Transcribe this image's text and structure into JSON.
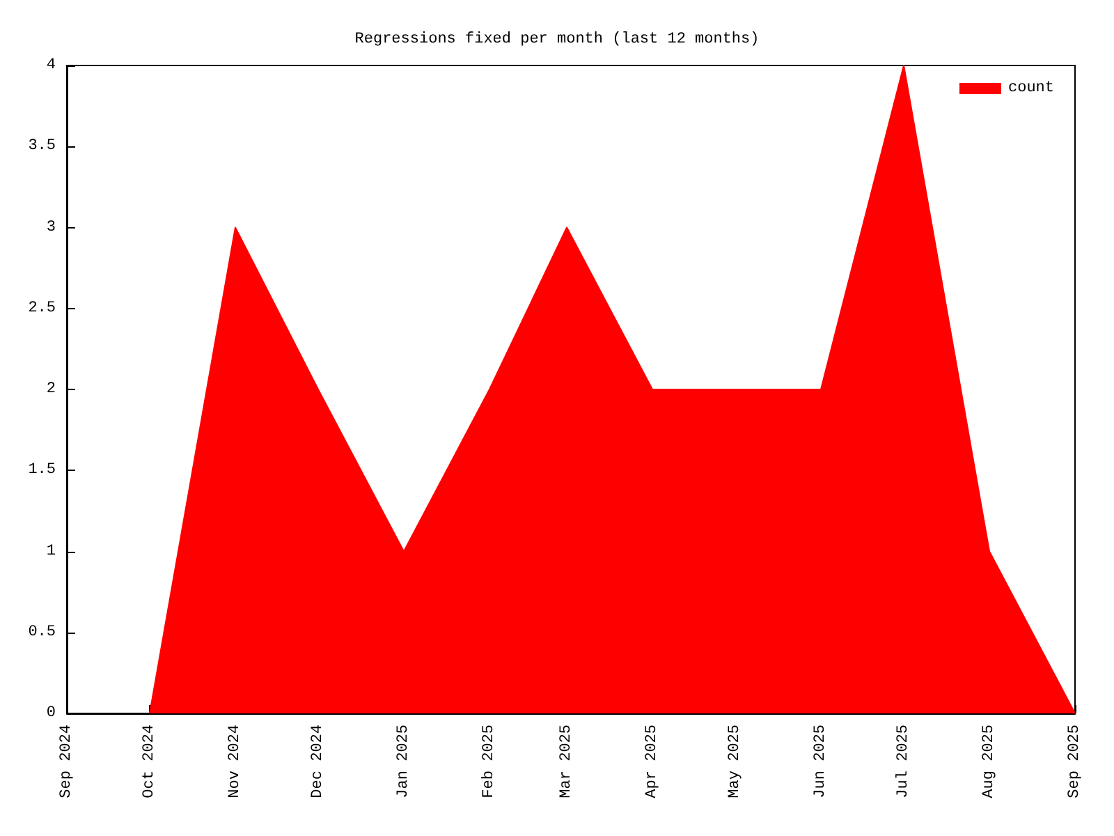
{
  "chart_data": {
    "type": "area",
    "title": "Regressions fixed per month (last 12 months)",
    "x": [
      "2024-10",
      "2024-11",
      "2024-12",
      "2025-01",
      "2025-02",
      "2025-03",
      "2025-04",
      "2025-05",
      "2025-06",
      "2025-07",
      "2025-08",
      "2025-09"
    ],
    "series": [
      {
        "name": "count",
        "color": "#ff0000",
        "values": [
          0,
          3,
          2,
          1,
          2,
          3,
          2,
          2,
          2,
          4,
          1,
          0
        ]
      }
    ],
    "xlim": [
      "2024-09",
      "2025-09"
    ],
    "xticks": [
      {
        "value": "2024-09",
        "label": "Sep 2024"
      },
      {
        "value": "2024-10",
        "label": "Oct 2024"
      },
      {
        "value": "2024-11",
        "label": "Nov 2024"
      },
      {
        "value": "2024-12",
        "label": "Dec 2024"
      },
      {
        "value": "2025-01",
        "label": "Jan 2025"
      },
      {
        "value": "2025-02",
        "label": "Feb 2025"
      },
      {
        "value": "2025-03",
        "label": "Mar 2025"
      },
      {
        "value": "2025-04",
        "label": "Apr 2025"
      },
      {
        "value": "2025-05",
        "label": "May 2025"
      },
      {
        "value": "2025-06",
        "label": "Jun 2025"
      },
      {
        "value": "2025-07",
        "label": "Jul 2025"
      },
      {
        "value": "2025-08",
        "label": "Aug 2025"
      },
      {
        "value": "2025-09",
        "label": "Sep 2025"
      }
    ],
    "ylim": [
      0,
      4
    ],
    "yticks": [
      0,
      0.5,
      1,
      1.5,
      2,
      2.5,
      3,
      3.5,
      4
    ],
    "grid": false,
    "legend": "top right"
  }
}
